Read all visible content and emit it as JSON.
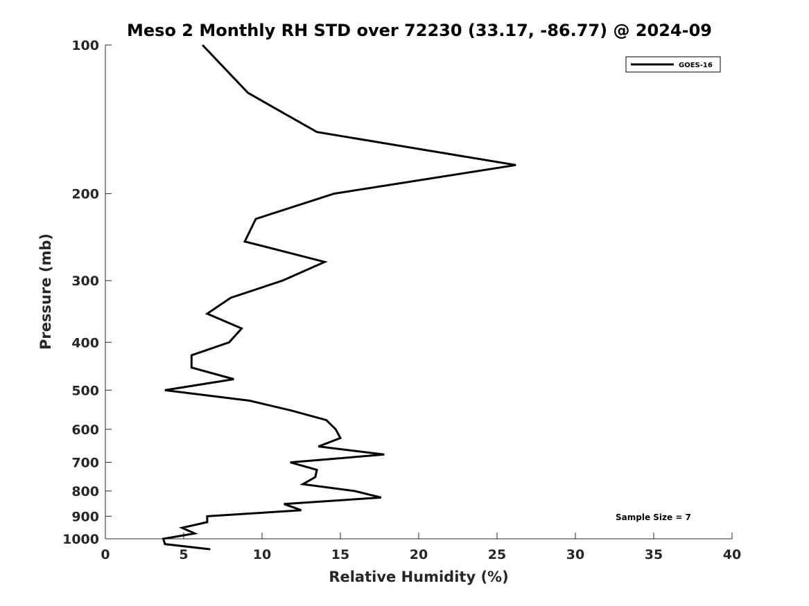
{
  "chart_data": {
    "type": "line",
    "title": "Meso 2 Monthly RH STD over 72230 (33.17, -86.77) @ 2024-09",
    "xlabel": "Relative Humidity (%)",
    "ylabel": "Pressure (mb)",
    "xlim": [
      0,
      40
    ],
    "ylim": [
      1000,
      100
    ],
    "y_scale": "log",
    "y_reversed": true,
    "x_ticks": [
      0,
      5,
      10,
      15,
      20,
      25,
      30,
      35,
      40
    ],
    "y_ticks": [
      100,
      200,
      300,
      400,
      500,
      600,
      700,
      800,
      900,
      1000
    ],
    "grid": false,
    "legend_position": "top-right",
    "annotation": "Sample Size = 7",
    "series": [
      {
        "name": "GOES-16",
        "color": "#000000",
        "points": [
          {
            "x": 6.2,
            "y": 100
          },
          {
            "x": 9.1,
            "y": 125
          },
          {
            "x": 13.5,
            "y": 150
          },
          {
            "x": 26.2,
            "y": 175
          },
          {
            "x": 14.6,
            "y": 200
          },
          {
            "x": 9.6,
            "y": 225
          },
          {
            "x": 8.9,
            "y": 250
          },
          {
            "x": 14.0,
            "y": 275
          },
          {
            "x": 11.3,
            "y": 300
          },
          {
            "x": 8.0,
            "y": 325
          },
          {
            "x": 6.5,
            "y": 350
          },
          {
            "x": 8.7,
            "y": 375
          },
          {
            "x": 7.9,
            "y": 400
          },
          {
            "x": 5.5,
            "y": 425
          },
          {
            "x": 5.5,
            "y": 450
          },
          {
            "x": 8.2,
            "y": 475
          },
          {
            "x": 3.8,
            "y": 500
          },
          {
            "x": 9.2,
            "y": 525
          },
          {
            "x": 11.9,
            "y": 550
          },
          {
            "x": 14.1,
            "y": 575
          },
          {
            "x": 14.7,
            "y": 600
          },
          {
            "x": 15.0,
            "y": 625
          },
          {
            "x": 13.6,
            "y": 650
          },
          {
            "x": 17.8,
            "y": 675
          },
          {
            "x": 11.8,
            "y": 700
          },
          {
            "x": 13.5,
            "y": 725
          },
          {
            "x": 13.4,
            "y": 750
          },
          {
            "x": 12.6,
            "y": 775
          },
          {
            "x": 15.9,
            "y": 800
          },
          {
            "x": 17.6,
            "y": 825
          },
          {
            "x": 11.4,
            "y": 850
          },
          {
            "x": 12.5,
            "y": 875
          },
          {
            "x": 6.5,
            "y": 900
          },
          {
            "x": 6.5,
            "y": 925
          },
          {
            "x": 4.9,
            "y": 950
          },
          {
            "x": 5.7,
            "y": 975
          },
          {
            "x": 3.7,
            "y": 1000
          },
          {
            "x": 3.8,
            "y": 1025
          },
          {
            "x": 6.7,
            "y": 1050
          }
        ]
      }
    ]
  }
}
